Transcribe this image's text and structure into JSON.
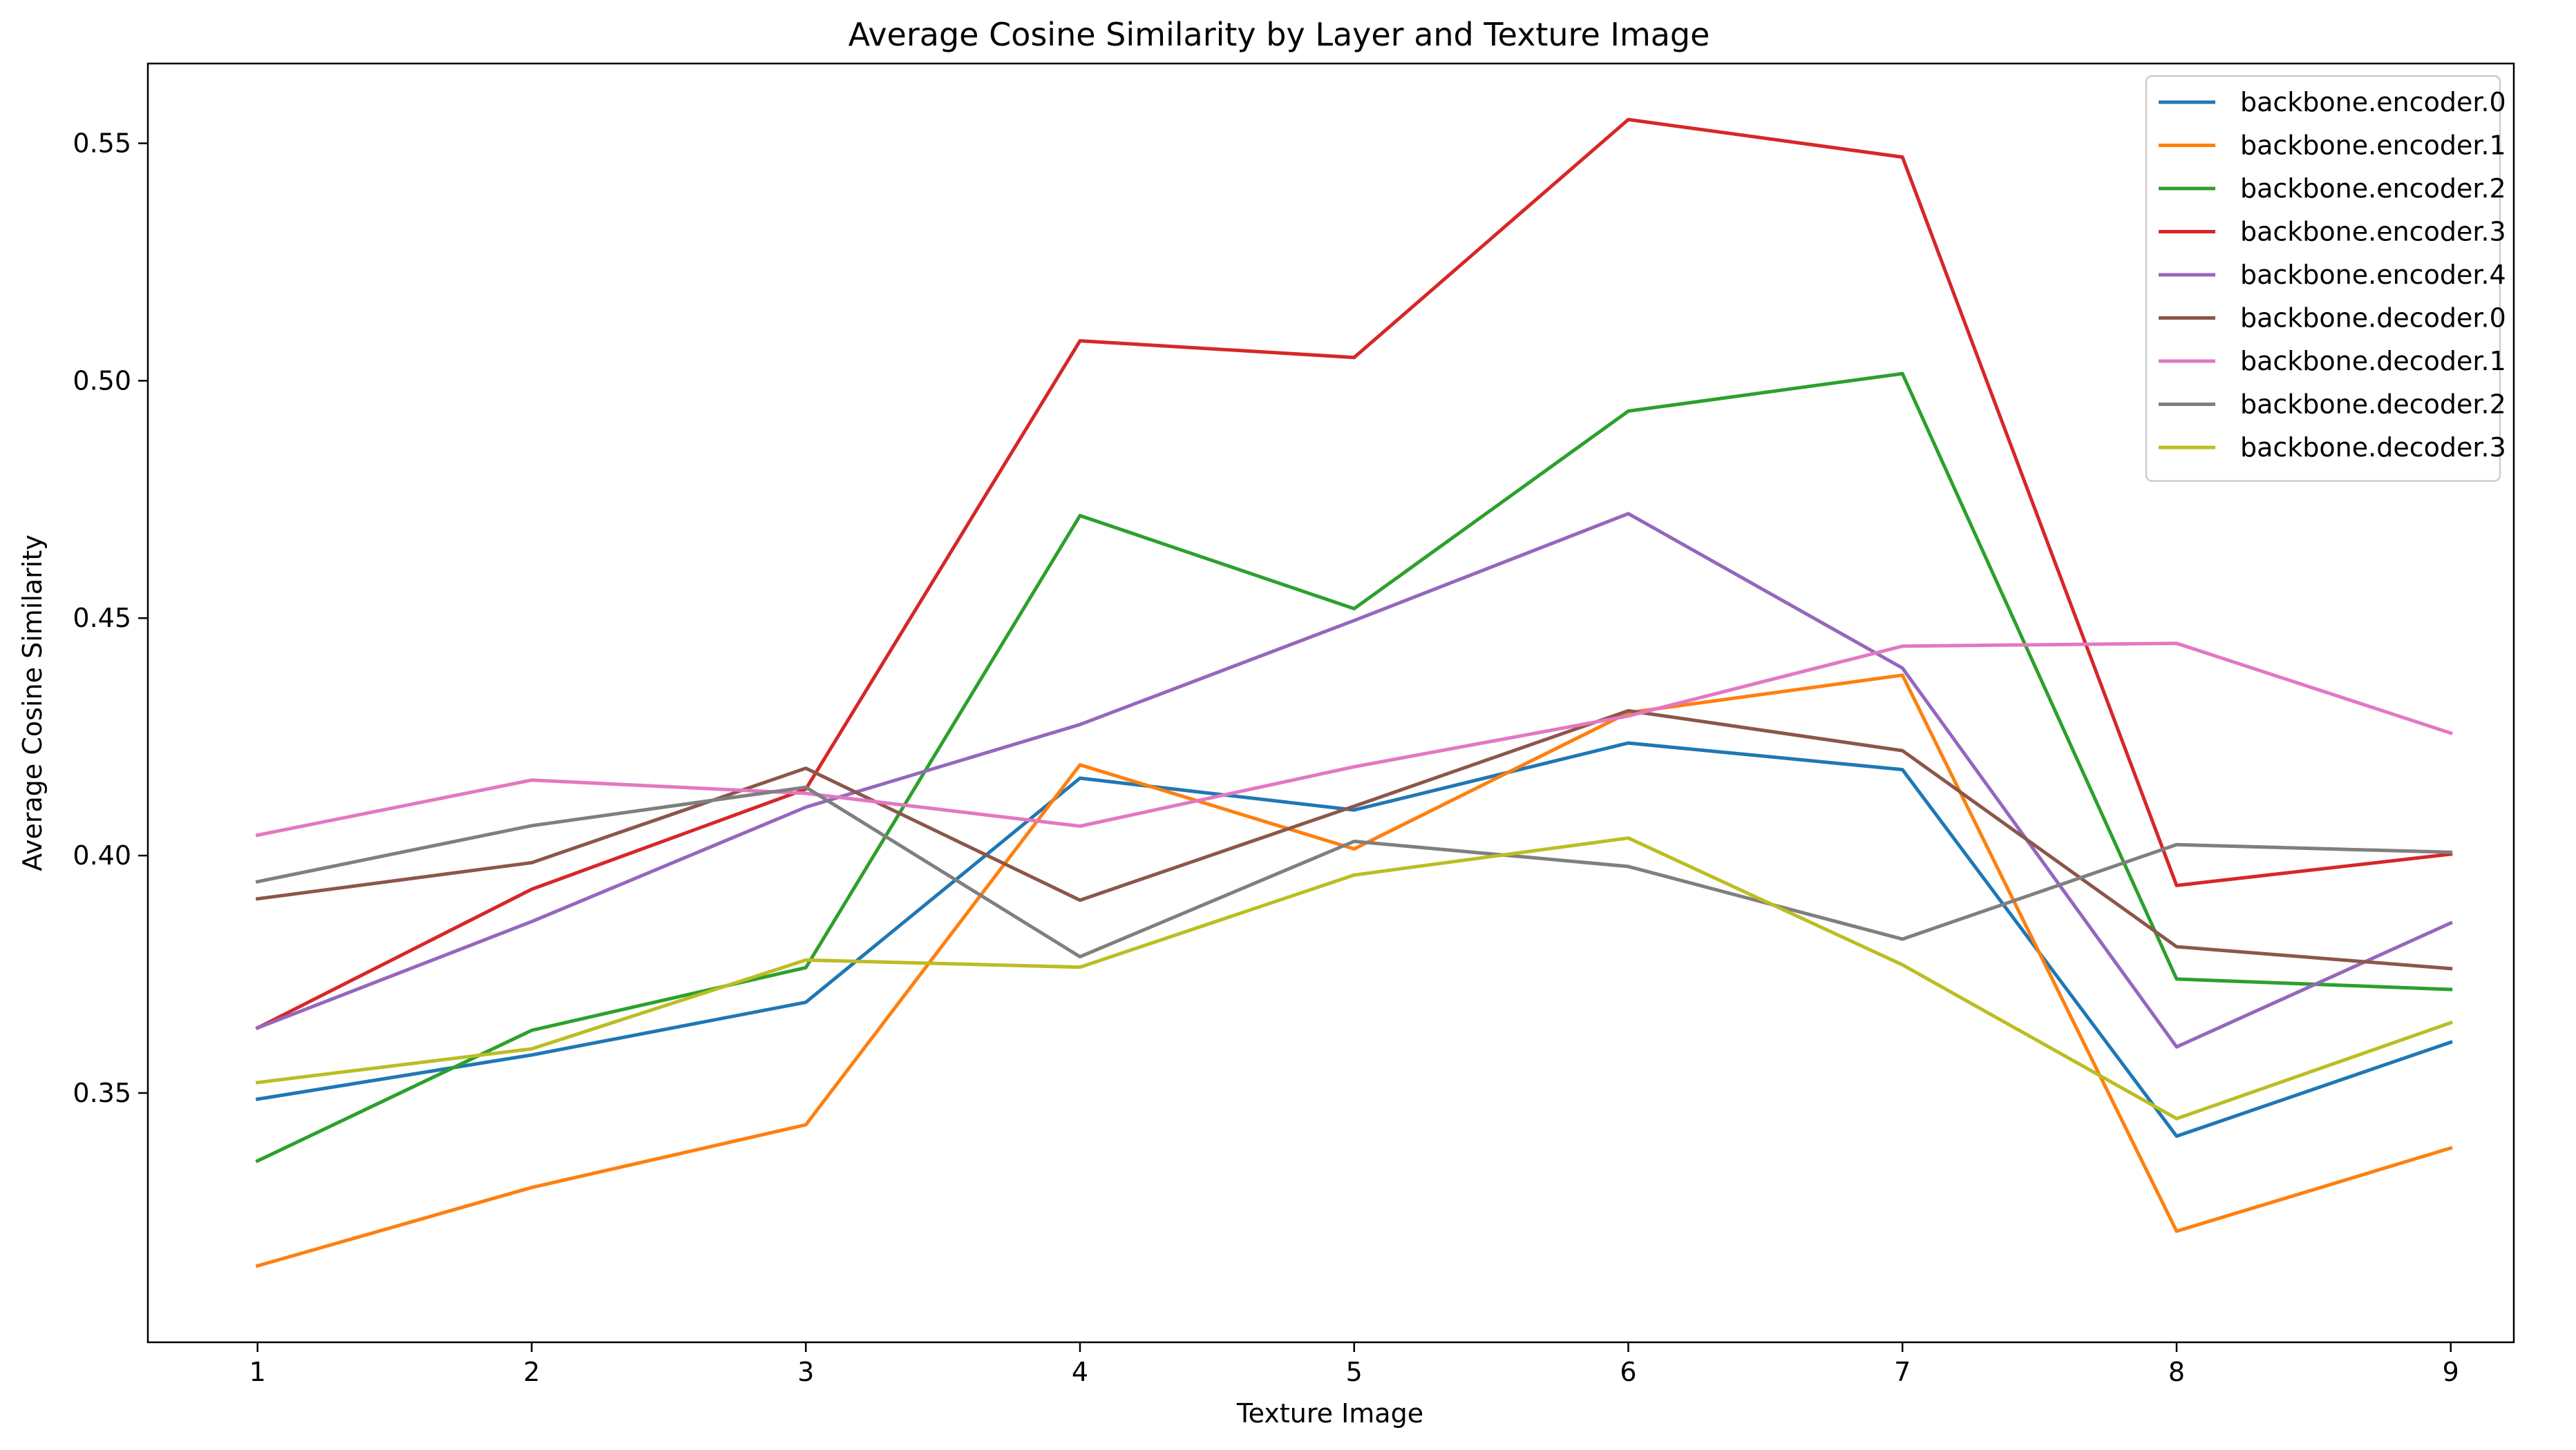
{
  "chart_data": {
    "type": "line",
    "title": "Average Cosine Similarity by Layer and Texture Image",
    "xlabel": "Texture Image",
    "ylabel": "Average Cosine Similarity",
    "x": [
      1,
      2,
      3,
      4,
      5,
      6,
      7,
      8,
      9
    ],
    "x_ticks": [
      "1",
      "2",
      "3",
      "4",
      "5",
      "6",
      "7",
      "8",
      "9"
    ],
    "xlim": [
      0.6,
      9.23
    ],
    "y_ticks": [
      0.35,
      0.4,
      0.45,
      0.5,
      0.55
    ],
    "y_tick_labels": [
      "0.35",
      "0.40",
      "0.45",
      "0.50",
      "0.55"
    ],
    "ylim": [
      0.2975,
      0.5668
    ],
    "grid": false,
    "legend_position": "top-right",
    "series": [
      {
        "name": "backbone.encoder.0",
        "color": "#1f77b4",
        "values": [
          0.3487,
          0.358,
          0.3691,
          0.4163,
          0.4096,
          0.4237,
          0.4181,
          0.3409,
          0.3607
        ]
      },
      {
        "name": "backbone.encoder.1",
        "color": "#ff7f0e",
        "values": [
          0.3136,
          0.3301,
          0.3433,
          0.4191,
          0.4014,
          0.4301,
          0.438,
          0.3209,
          0.3384
        ]
      },
      {
        "name": "backbone.encoder.2",
        "color": "#2ca02c",
        "values": [
          0.3357,
          0.3632,
          0.3764,
          0.4716,
          0.452,
          0.4936,
          0.5015,
          0.374,
          0.3718
        ]
      },
      {
        "name": "backbone.encoder.3",
        "color": "#d62728",
        "values": [
          0.3637,
          0.3929,
          0.414,
          0.5084,
          0.5049,
          0.555,
          0.5471,
          0.3937,
          0.4003
        ]
      },
      {
        "name": "backbone.encoder.4",
        "color": "#9467bd",
        "values": [
          0.3637,
          0.3861,
          0.4102,
          0.4276,
          0.4495,
          0.472,
          0.4395,
          0.3597,
          0.3858
        ]
      },
      {
        "name": "backbone.decoder.0",
        "color": "#8c564b",
        "values": [
          0.3909,
          0.3985,
          0.4184,
          0.3906,
          0.4104,
          0.4305,
          0.4221,
          0.3808,
          0.3762
        ]
      },
      {
        "name": "backbone.decoder.1",
        "color": "#e377c2",
        "values": [
          0.4043,
          0.4159,
          0.4131,
          0.4062,
          0.4187,
          0.4294,
          0.4441,
          0.4447,
          0.4258
        ]
      },
      {
        "name": "backbone.decoder.2",
        "color": "#7f7f7f",
        "values": [
          0.3945,
          0.4063,
          0.4144,
          0.3787,
          0.403,
          0.3977,
          0.3824,
          0.4023,
          0.4007
        ]
      },
      {
        "name": "backbone.decoder.3",
        "color": "#bcbd22",
        "values": [
          0.3522,
          0.3593,
          0.378,
          0.3765,
          0.3959,
          0.4037,
          0.377,
          0.3446,
          0.3648
        ]
      }
    ]
  }
}
